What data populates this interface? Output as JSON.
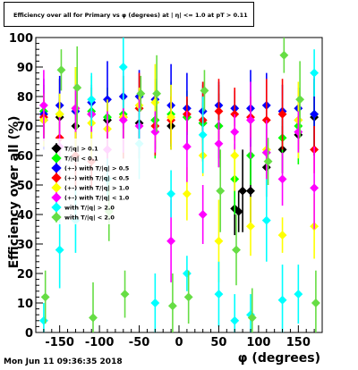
{
  "title": "Efficiency over all for Primary vs φ (degrees) at |  η| <= 1.0 at pT > 0.11",
  "footer": "Mon Jun 11 09:36:35 2018",
  "chart_data": {
    "type": "scatter",
    "xlabel": "φ (degrees)",
    "ylabel": "Efficiency over all (%)",
    "xlim": [
      -180,
      180
    ],
    "ylim": [
      0,
      100
    ],
    "x_ticks": [
      -150,
      -100,
      -50,
      0,
      50,
      100,
      150
    ],
    "y_ticks": [
      0,
      10,
      20,
      30,
      40,
      50,
      60,
      70,
      80,
      90,
      100
    ],
    "legend_placement": "middle-left",
    "legend": [
      {
        "label": "T/|q| > 0.1",
        "color": "#000000"
      },
      {
        "label": "T/|q| < 0.1",
        "color": "#00ff00"
      },
      {
        "label": "(+-) with T/|q| > 0.5",
        "color": "#0000ff"
      },
      {
        "label": "(+-) with T/|q| < 0.5",
        "color": "#ff0000"
      },
      {
        "label": "(+-) with T/|q| > 1.0",
        "color": "#ffff00"
      },
      {
        "label": "(+-) with T/|q| < 1.0",
        "color": "#ff00ff"
      },
      {
        "label": "with T/|q| > 2.0",
        "color": "#00ffff"
      },
      {
        "label": "with T/|q| < 2.0",
        "color": "#66dd44"
      }
    ],
    "series": [
      {
        "color": "#000000",
        "x": [
          -170,
          -150,
          -130,
          -110,
          -90,
          -70,
          -50,
          -30,
          -10,
          10,
          30,
          50,
          70,
          75,
          80,
          90,
          110,
          130,
          150,
          170
        ],
        "y": [
          72,
          73,
          70,
          74,
          72,
          73,
          71,
          72,
          70,
          73,
          71,
          70,
          42,
          41,
          48,
          48,
          56,
          62,
          67,
          73
        ]
      },
      {
        "color": "#00ff00",
        "x": [
          -170,
          -150,
          -130,
          -110,
          -90,
          -70,
          -50,
          -30,
          -10,
          10,
          30,
          50,
          70,
          90,
          110,
          130,
          150,
          170
        ],
        "y": [
          75,
          74,
          76,
          75,
          73,
          74,
          76,
          72,
          74,
          73,
          71,
          70,
          52,
          60,
          61,
          66,
          70,
          74
        ]
      },
      {
        "color": "#0000ff",
        "x": [
          -170,
          -150,
          -130,
          -110,
          -90,
          -70,
          -50,
          -30,
          -10,
          10,
          30,
          50,
          70,
          90,
          110,
          130,
          150,
          170
        ],
        "y": [
          74,
          77,
          75,
          78,
          79,
          80,
          80,
          79,
          77,
          76,
          75,
          77,
          76,
          76,
          77,
          75,
          76,
          74
        ]
      },
      {
        "color": "#ff0000",
        "x": [
          -170,
          -150,
          -130,
          -110,
          -90,
          -70,
          -50,
          -30,
          -10,
          10,
          30,
          50,
          70,
          90,
          110,
          130,
          150,
          170
        ],
        "y": [
          73,
          66,
          60,
          58,
          62,
          73,
          76,
          70,
          72,
          74,
          72,
          75,
          74,
          73,
          72,
          74,
          72,
          62
        ]
      },
      {
        "color": "#ffff00",
        "x": [
          -170,
          -150,
          -130,
          -110,
          -90,
          -70,
          -50,
          -30,
          -10,
          10,
          30,
          50,
          70,
          90,
          110,
          130,
          150,
          170
        ],
        "y": [
          72,
          74,
          76,
          71,
          69,
          73,
          77,
          78,
          73,
          47,
          60,
          31,
          60,
          36,
          62,
          33,
          72,
          36
        ]
      },
      {
        "color": "#ff00ff",
        "x": [
          -170,
          -150,
          -130,
          -110,
          -90,
          -70,
          -50,
          -30,
          -10,
          10,
          30,
          50,
          70,
          90,
          110,
          130,
          150,
          170
        ],
        "y": [
          77,
          63,
          76,
          74,
          62,
          72,
          70,
          68,
          31,
          63,
          40,
          64,
          68,
          72,
          61,
          52,
          68,
          49
        ]
      },
      {
        "color": "#00ffff",
        "x": [
          -170,
          -150,
          -130,
          -110,
          -90,
          -70,
          -50,
          -30,
          -10,
          10,
          30,
          50,
          70,
          90,
          110,
          130,
          150,
          170
        ],
        "y": [
          4,
          28,
          38,
          79,
          52,
          90,
          64,
          10,
          47,
          20,
          67,
          13,
          4,
          6,
          38,
          11,
          13,
          88
        ]
      },
      {
        "color": "#66dd44",
        "x": [
          -168,
          -148,
          -128,
          -108,
          -88,
          -68,
          -48,
          -28,
          -8,
          12,
          32,
          52,
          72,
          92,
          112,
          132,
          152,
          172
        ],
        "y": [
          12,
          89,
          83,
          5,
          41,
          13,
          81,
          81,
          9,
          12,
          82,
          48,
          28,
          5,
          58,
          94,
          79,
          10
        ]
      }
    ]
  }
}
